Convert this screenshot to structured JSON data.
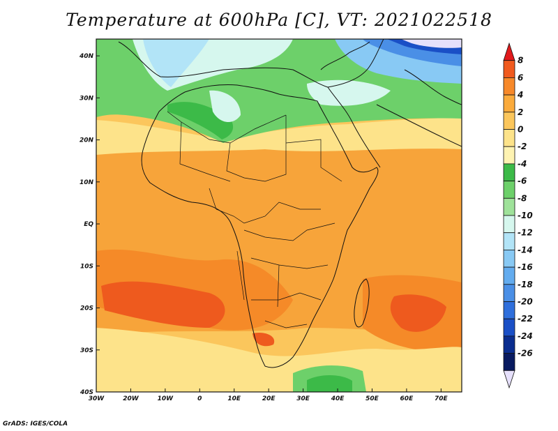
{
  "title": "Temperature at 600hPa [C], VT: 2021022518",
  "credit": "GrADS: IGES/COLA",
  "map": {
    "lon_range": [
      -30,
      76
    ],
    "lat_range": [
      -40,
      44
    ],
    "lon_ticks": [
      {
        "value": -30,
        "label": "30W"
      },
      {
        "value": -20,
        "label": "20W"
      },
      {
        "value": -10,
        "label": "10W"
      },
      {
        "value": 0,
        "label": "0"
      },
      {
        "value": 10,
        "label": "10E"
      },
      {
        "value": 20,
        "label": "20E"
      },
      {
        "value": 30,
        "label": "30E"
      },
      {
        "value": 40,
        "label": "40E"
      },
      {
        "value": 50,
        "label": "50E"
      },
      {
        "value": 60,
        "label": "60E"
      },
      {
        "value": 70,
        "label": "70E"
      }
    ],
    "lat_ticks": [
      {
        "value": 40,
        "label": "40N"
      },
      {
        "value": 30,
        "label": "30N"
      },
      {
        "value": 20,
        "label": "20N"
      },
      {
        "value": 10,
        "label": "10N"
      },
      {
        "value": 0,
        "label": "EQ"
      },
      {
        "value": -10,
        "label": "10S"
      },
      {
        "value": -20,
        "label": "20S"
      },
      {
        "value": -30,
        "label": "30S"
      },
      {
        "value": -40,
        "label": "40S"
      }
    ]
  },
  "colorbar": {
    "levels": [
      "8",
      "6",
      "4",
      "2",
      "0",
      "-2",
      "-4",
      "-6",
      "-8",
      "-10",
      "-12",
      "-14",
      "-16",
      "-18",
      "-20",
      "-22",
      "-24",
      "-26"
    ],
    "colors": [
      "#e11a1c",
      "#f05a1e",
      "#f7892a",
      "#fbab3c",
      "#fbc65c",
      "#fde38a",
      "#fef3b2",
      "#3cba48",
      "#6dd06a",
      "#9fe29a",
      "#d6f7ee",
      "#b2e4f7",
      "#88c9f4",
      "#63acef",
      "#4a8fe6",
      "#2f6fdc",
      "#1a4fc6",
      "#0a2d8f",
      "#081a60",
      "#e6e0fb"
    ]
  }
}
